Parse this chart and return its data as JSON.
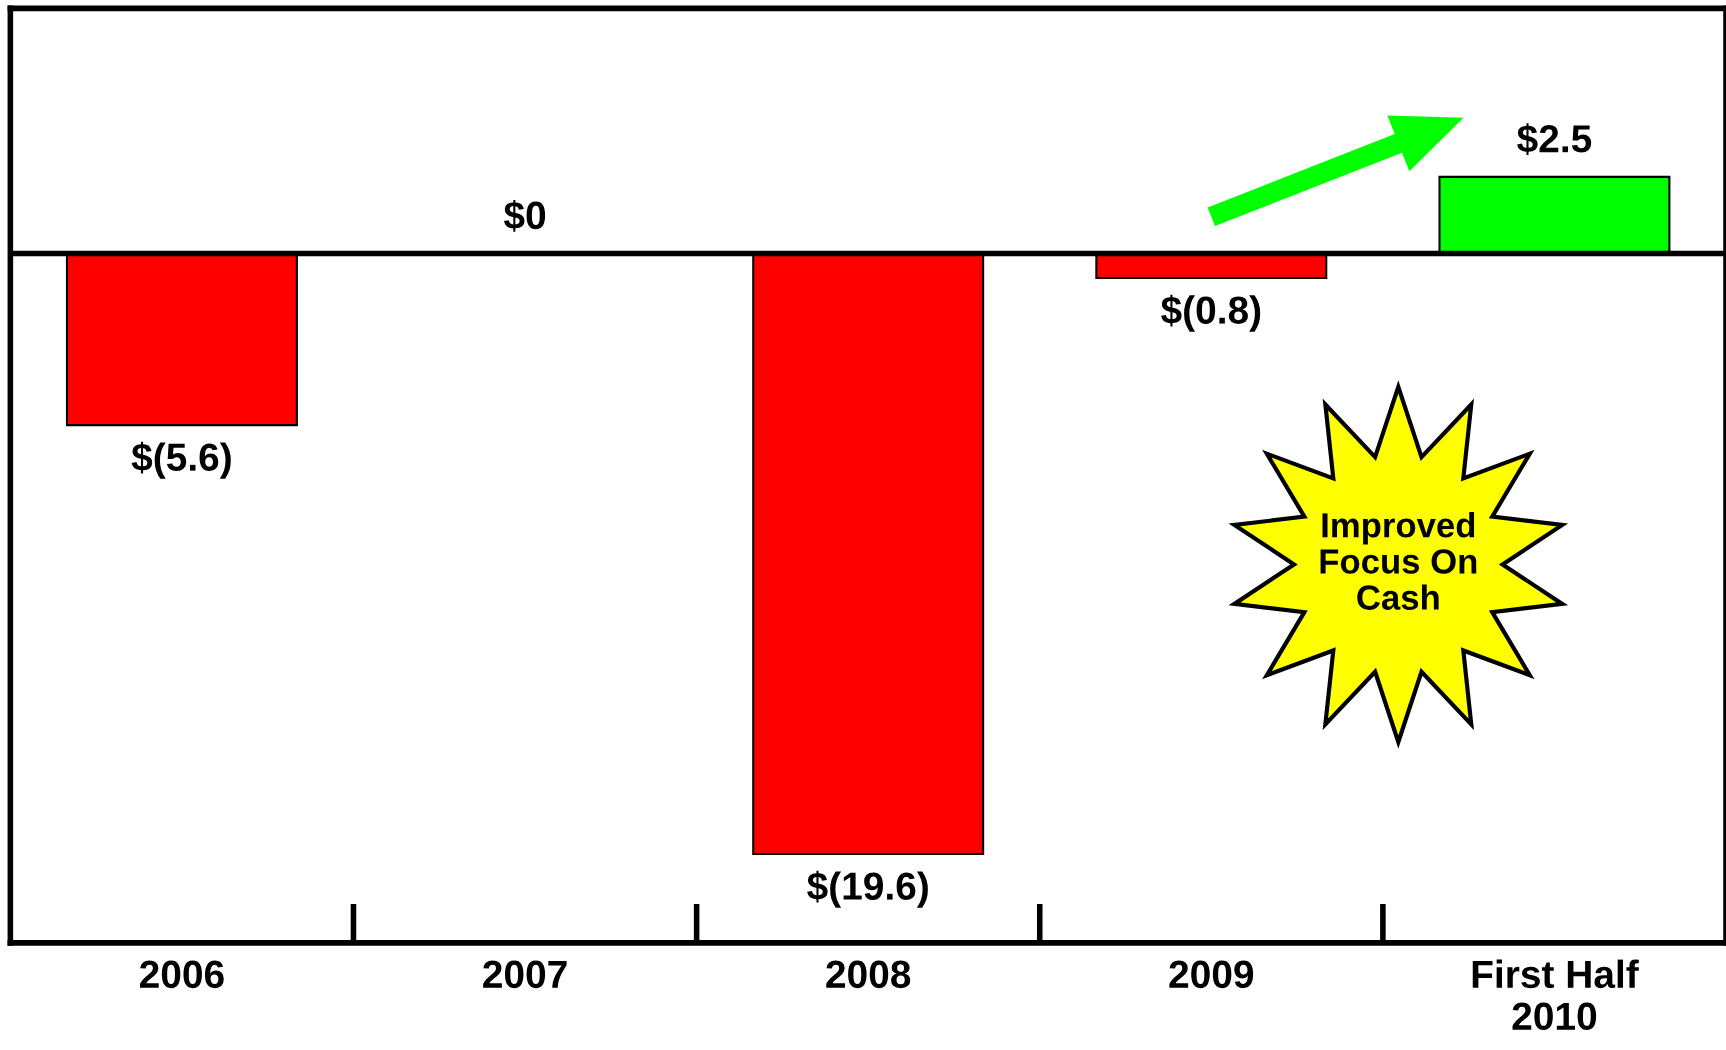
{
  "chart_data": {
    "type": "bar",
    "categories": [
      "2006",
      "2007",
      "2008",
      "2009",
      "First Half\n2010"
    ],
    "values": [
      -5.6,
      0,
      -19.6,
      -0.8,
      2.5
    ],
    "colors": [
      "#ff0000",
      "#ff0000",
      "#ff0000",
      "#ff0000",
      "#00ff00"
    ],
    "value_labels": [
      "$(5.6)",
      "$0",
      "$(19.6)",
      "$(0.8)",
      "$2.5"
    ],
    "ylim": [
      -22.5,
      8
    ],
    "ref_lines": [
      {
        "axis": "y",
        "value": 0,
        "color": "#000000"
      }
    ],
    "annotations": [
      "Improved\nFocus On\nCash"
    ],
    "tick_labels": "x",
    "grid": false,
    "legend": false
  }
}
